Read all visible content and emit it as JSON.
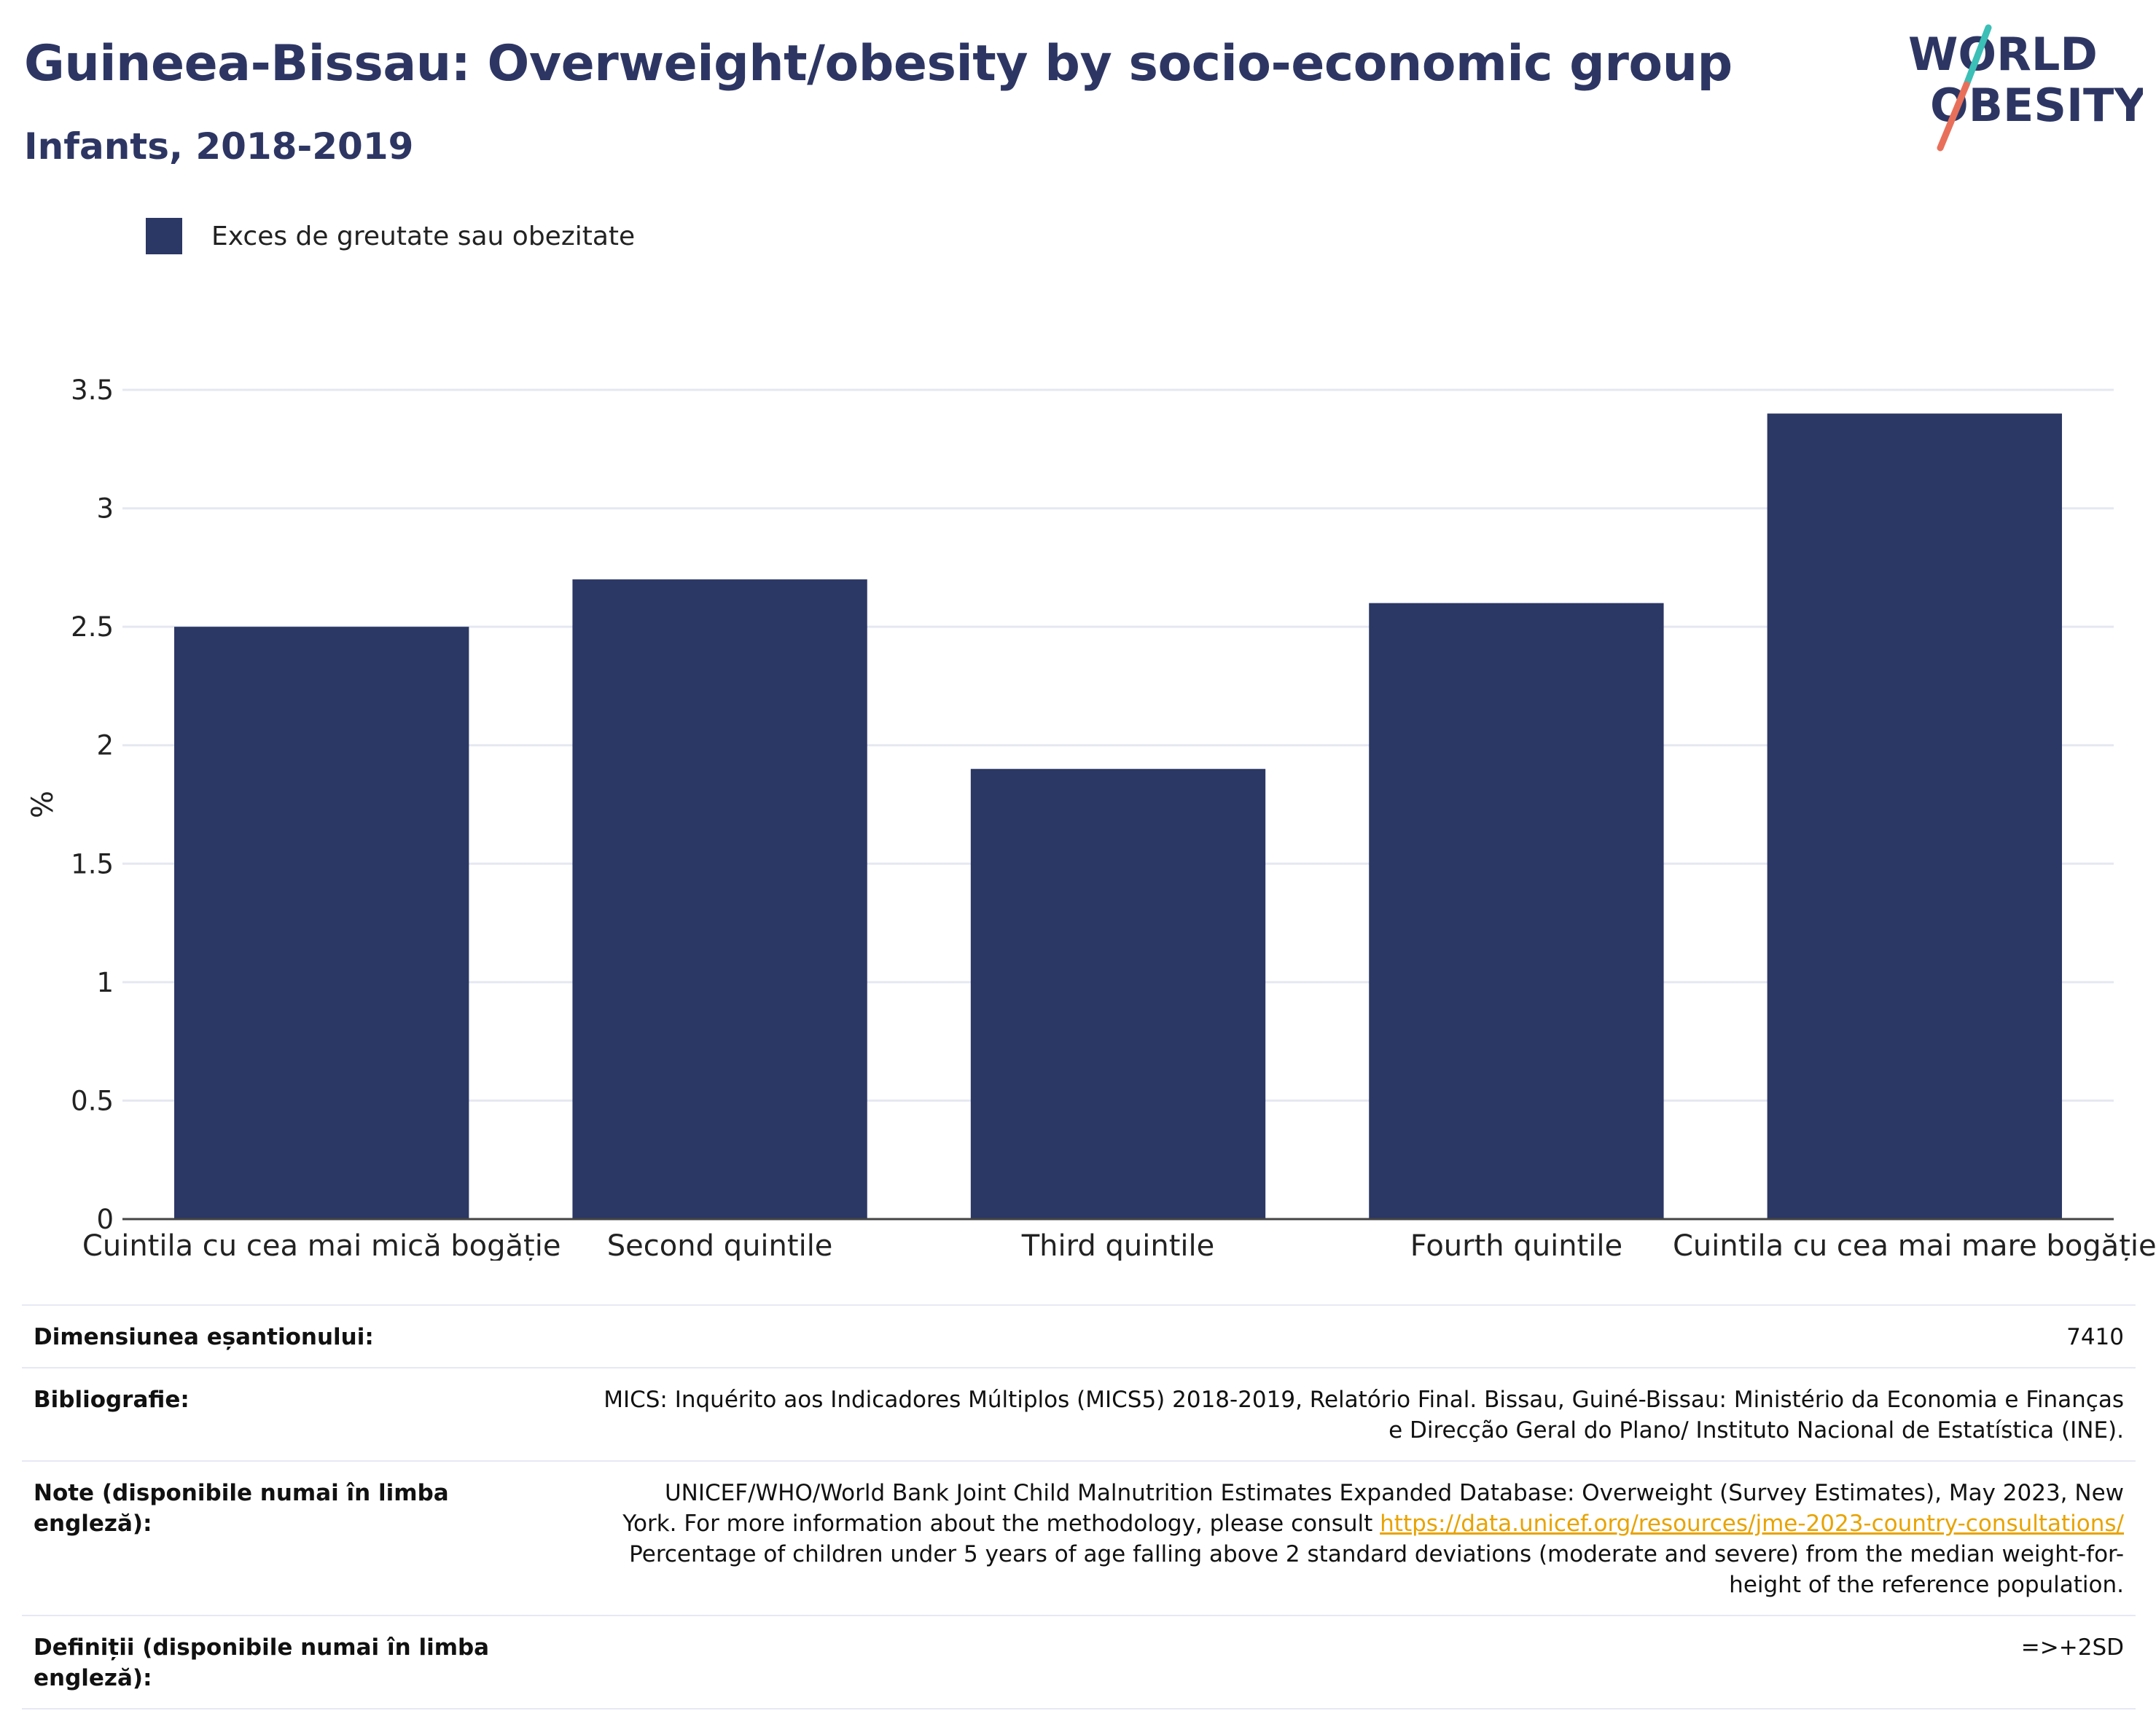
{
  "header": {
    "title": "Guineea-Bissau: Overweight/obesity by socio-economic group",
    "subtitle": "Infants, 2018-2019"
  },
  "logo": {
    "line1": "WORLD",
    "line2": "OBESITY",
    "colors": {
      "text": "#2d3663",
      "slash_top": "#3bbfb6",
      "slash_bottom": "#e8705a"
    }
  },
  "legend": {
    "label": "Exces de greutate sau obezitate",
    "color": "#2b3764"
  },
  "chart_data": {
    "type": "bar",
    "title": "Guineea-Bissau: Overweight/obesity by socio-economic group",
    "subtitle": "Infants, 2018-2019",
    "categories": [
      "Cuintila cu cea mai mică bogăție",
      "Second quintile",
      "Third quintile",
      "Fourth quintile",
      "Cuintila cu cea mai mare bogăție"
    ],
    "series": [
      {
        "name": "Exces de greutate sau obezitate",
        "values": [
          2.5,
          2.7,
          1.9,
          2.6,
          3.4
        ],
        "color": "#2b3764"
      }
    ],
    "xlabel": "",
    "ylabel": "%",
    "ylim": [
      0,
      3.5
    ],
    "yticks": [
      "0",
      "0.5",
      "1",
      "1.5",
      "2",
      "2.5",
      "3",
      "3.5"
    ],
    "grid": true,
    "legend_position": "top-left"
  },
  "info": {
    "sample_size_label": "Dimensiunea eșantionului:",
    "sample_size_value": "7410",
    "bibliography_label": "Bibliografie:",
    "bibliography_line1": "MICS: Inquérito aos Indicadores Múltiplos (MICS5) 2018-2019, Relatório Final. Bissau, Guiné-Bissau: Ministério da Economia e Finanças",
    "bibliography_line2": "e Direcção Geral do Plano/ Instituto Nacional de Estatística (INE).",
    "notes_label": "Note (disponibile numai în limba engleză):",
    "notes_line1": "UNICEF/WHO/World Bank Joint Child Malnutrition Estimates Expanded Database: Overweight (Survey Estimates), May 2023, New",
    "notes_line2_prefix": "York. For more information about the methodology, please consult",
    "notes_link": "https://data.unicef.org/resources/jme-2023-country-consultations/",
    "notes_line3": "Percentage of children under 5 years of age falling above 2 standard deviations (moderate and severe) from the median weight-for-",
    "notes_line4": "height of the reference population.",
    "definitions_label": "Definiții (disponibile numai în limba engleză):",
    "definitions_value": "=>+2SD"
  }
}
